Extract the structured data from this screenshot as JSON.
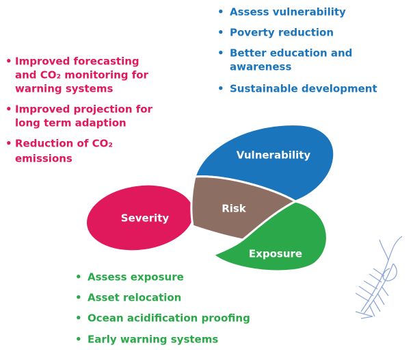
{
  "vulnerability_actions": [
    {
      "lines": [
        "Assess vulnerability"
      ]
    },
    {
      "lines": [
        "Poverty reduction"
      ]
    },
    {
      "lines": [
        "Better education and",
        "awareness"
      ]
    },
    {
      "lines": [
        "Sustainable development"
      ]
    }
  ],
  "severity_actions": [
    {
      "lines": [
        "Improved forecasting",
        "and CO₂ monitoring for",
        "warning systems"
      ]
    },
    {
      "lines": [
        "Improved projection for",
        "long term adaption"
      ]
    },
    {
      "lines": [
        "Reduction of CO₂",
        "emissions"
      ]
    }
  ],
  "exposure_actions": [
    {
      "lines": [
        "Assess exposure"
      ]
    },
    {
      "lines": [
        "Asset relocation"
      ]
    },
    {
      "lines": [
        "Ocean acidification proofing"
      ]
    },
    {
      "lines": [
        "Early warning systems"
      ]
    }
  ],
  "petals": {
    "vulnerability": "Vulnerability",
    "severity": "Severity",
    "exposure": "Exposure",
    "risk": "Risk"
  }
}
